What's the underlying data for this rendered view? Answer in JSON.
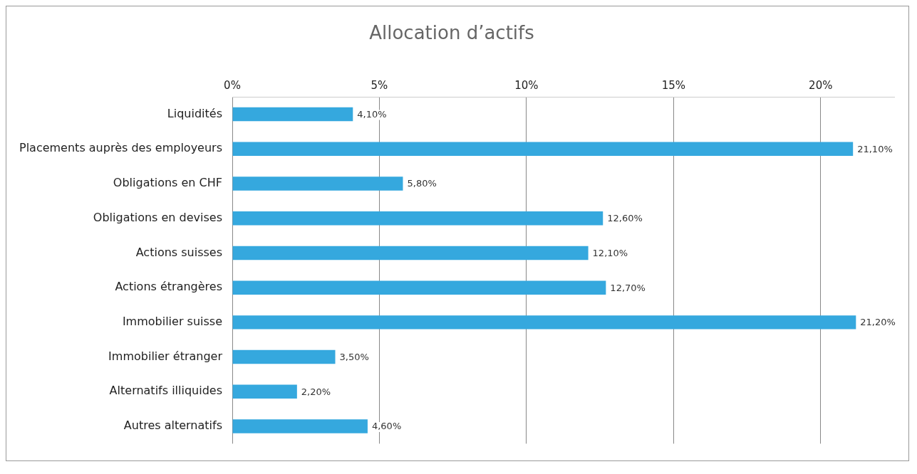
{
  "chart_data": {
    "type": "bar",
    "orientation": "horizontal",
    "title": "Allocation d’actifs",
    "categories": [
      "Liquidités",
      "Placements auprès des employeurs",
      "Obligations en CHF",
      "Obligations en devises",
      "Actions suisses",
      "Actions étrangères",
      "Immobilier suisse",
      "Immobilier étranger",
      "Alternatifs illiquides",
      "Autres alternatifs"
    ],
    "values": [
      4.1,
      21.1,
      5.8,
      12.6,
      12.1,
      12.7,
      21.2,
      3.5,
      2.2,
      4.6
    ],
    "value_labels": [
      "4,10%",
      "21,10%",
      "5,80%",
      "12,60%",
      "12,10%",
      "12,70%",
      "21,20%",
      "3,50%",
      "2,20%",
      "4,60%"
    ],
    "color": "#35a8de",
    "xlim": [
      0,
      22.5
    ],
    "xticks": [
      {
        "value": 0,
        "label": "0%"
      },
      {
        "value": 5,
        "label": "5%"
      },
      {
        "value": 10,
        "label": "10%"
      },
      {
        "value": 15,
        "label": "15%"
      },
      {
        "value": 20,
        "label": "20%"
      }
    ],
    "grid": "x",
    "legend": false
  }
}
